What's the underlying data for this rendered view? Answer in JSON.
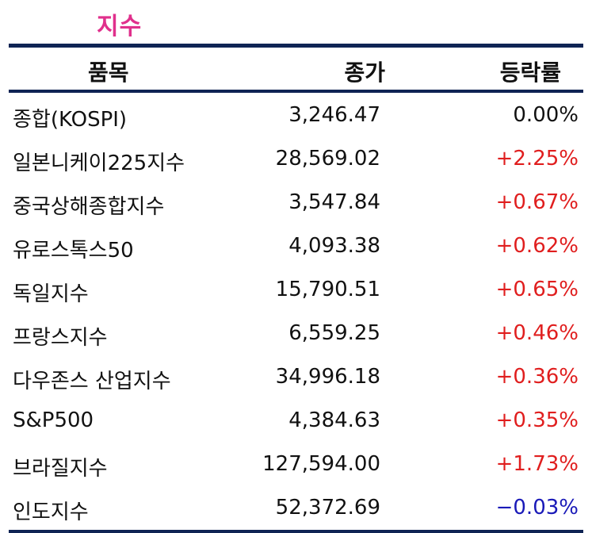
{
  "title": "지수",
  "headers": {
    "name": "품목",
    "close": "종가",
    "rate": "등락률"
  },
  "colors": {
    "title": "#e0308c",
    "rule": "#0f2454",
    "up": "#e01e1e",
    "down": "#1a1ab8",
    "flat": "#111111"
  },
  "rows": [
    {
      "name": "종합(KOSPI)",
      "close": "3,246.47",
      "rate": "0.00%",
      "trend": "flat"
    },
    {
      "name": "일본니케이225지수",
      "close": "28,569.02",
      "rate": "+2.25%",
      "trend": "up"
    },
    {
      "name": "중국상해종합지수",
      "close": "3,547.84",
      "rate": "+0.67%",
      "trend": "up"
    },
    {
      "name": "유로스톡스50",
      "close": "4,093.38",
      "rate": "+0.62%",
      "trend": "up"
    },
    {
      "name": "독일지수",
      "close": "15,790.51",
      "rate": "+0.65%",
      "trend": "up"
    },
    {
      "name": "프랑스지수",
      "close": "6,559.25",
      "rate": "+0.46%",
      "trend": "up"
    },
    {
      "name": "다우존스 산업지수",
      "close": "34,996.18",
      "rate": "+0.36%",
      "trend": "up"
    },
    {
      "name": "S&P500",
      "close": "4,384.63",
      "rate": "+0.35%",
      "trend": "up"
    },
    {
      "name": "브라질지수",
      "close": "127,594.00",
      "rate": "+1.73%",
      "trend": "up"
    },
    {
      "name": "인도지수",
      "close": "52,372.69",
      "rate": "−0.03%",
      "trend": "down"
    }
  ]
}
